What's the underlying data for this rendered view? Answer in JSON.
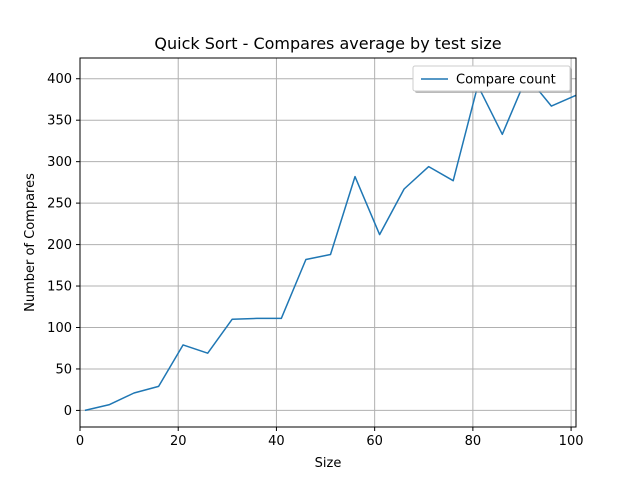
{
  "chart_data": {
    "type": "line",
    "title": "Quick Sort - Compares average by test size",
    "xlabel": "Size",
    "ylabel": "Number of Compares",
    "xlim": [
      0,
      101
    ],
    "ylim": [
      -20,
      425
    ],
    "xticks": [
      0,
      20,
      40,
      60,
      80,
      100
    ],
    "yticks": [
      0,
      50,
      100,
      150,
      200,
      250,
      300,
      350,
      400
    ],
    "grid": true,
    "legend_position": "top-right",
    "series": [
      {
        "name": "Compare count",
        "color": "#1f77b4",
        "x": [
          1,
          6,
          11,
          16,
          21,
          26,
          31,
          36,
          41,
          46,
          51,
          56,
          61,
          66,
          71,
          76,
          81,
          86,
          91,
          96,
          101
        ],
        "y": [
          0,
          7,
          21,
          29,
          79,
          69,
          110,
          111,
          111,
          182,
          188,
          282,
          212,
          267,
          294,
          277,
          392,
          333,
          403,
          367,
          380
        ]
      }
    ]
  }
}
